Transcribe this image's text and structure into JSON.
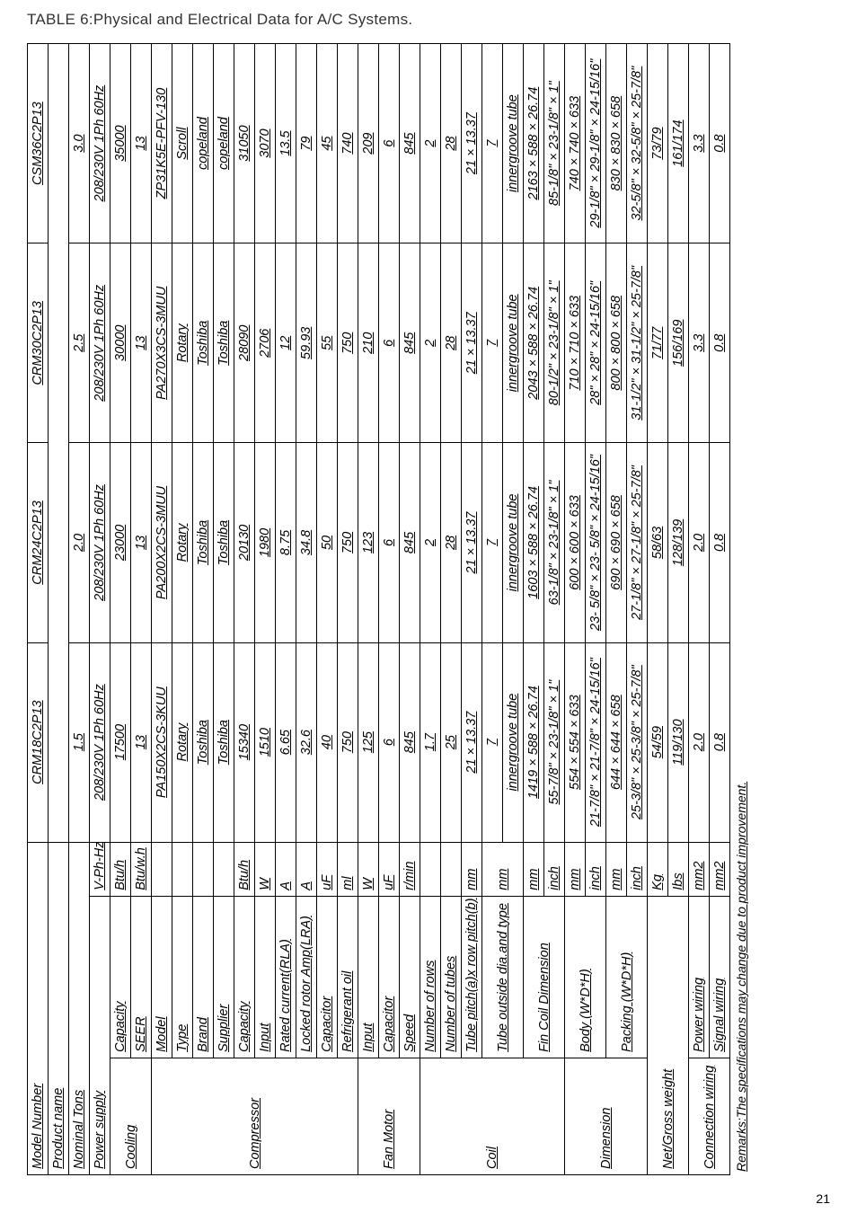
{
  "pageTitle": "TABLE 6:Physical and Electrical Data  for A/C Systems.",
  "pageNum": "21",
  "footnote": "Remarks:The specifications may change due to product improvement.",
  "headers": {
    "modelNumber": "Model Number",
    "productName": "Product name",
    "nominalTons": "Nominal Tons",
    "powerSupply": "Power supply",
    "powerSupplyUnit": "V-Ph-Hz"
  },
  "models": [
    "CRM18C2P13",
    "CRM24C2P13",
    "CRM30C2P13",
    "CSM36C2P13"
  ],
  "nominalTons": [
    "1.5",
    "2.0",
    "2.5",
    "3.0"
  ],
  "powerSupply": [
    "208/230V 1Ph 60Hz",
    "208/230V 1Ph 60Hz",
    "208/230V 1Ph 60Hz",
    "208/230V 1Ph 60Hz"
  ],
  "sections": {
    "cooling": {
      "label": "Cooling",
      "rows": [
        {
          "l": "Capacity",
          "u": "Btu/h",
          "v": [
            "17500",
            "23000",
            "30000",
            "35000"
          ]
        },
        {
          "l": "SEER",
          "u": "Btu/w.h",
          "v": [
            "13",
            "13",
            "13",
            "13"
          ]
        }
      ]
    },
    "compressor": {
      "label": "Compressor",
      "rows": [
        {
          "l": "Model",
          "u": "",
          "v": [
            "PA150X2CS-3KUU",
            "PA200X2CS-3MUU",
            "PA270X3CS-3MUU",
            "ZP31K5E-PFV-130"
          ]
        },
        {
          "l": "Type",
          "u": "",
          "v": [
            "Rotary",
            "Rotary",
            "Rotary",
            "Scroll"
          ]
        },
        {
          "l": "Brand",
          "u": "",
          "v": [
            "Toshiba",
            "Toshiba",
            "Toshiba",
            "copeland"
          ]
        },
        {
          "l": "Supplier",
          "u": "",
          "v": [
            "Toshiba",
            "Toshiba",
            "Toshiba",
            "copeland"
          ]
        },
        {
          "l": "Capacity",
          "u": "Btu/h",
          "v": [
            "15340",
            "20130",
            "28090",
            "31050"
          ]
        },
        {
          "l": "Input",
          "u": "W",
          "v": [
            "1510",
            "1980",
            "2706",
            "3070"
          ]
        },
        {
          "l": "Rated current(RLA)",
          "u": "A",
          "v": [
            "6.65",
            "8.75",
            "12",
            "13.5"
          ]
        },
        {
          "l": "Locked rotor Amp(LRA)",
          "u": "A",
          "v": [
            "32.6",
            "34.8",
            "59.93",
            "79"
          ]
        },
        {
          "l": "Capacitor",
          "u": "uF",
          "v": [
            "40",
            "50",
            "55",
            "45"
          ]
        },
        {
          "l": "Refrigerant oil",
          "u": "ml",
          "v": [
            "750",
            "750",
            "750",
            "740"
          ]
        }
      ]
    },
    "fanMotor": {
      "label": "Fan Motor",
      "rows": [
        {
          "l": "Input",
          "u": "W",
          "v": [
            "125",
            "123",
            "210",
            "209"
          ]
        },
        {
          "l": "Capacitor",
          "u": "uF",
          "v": [
            "6",
            "6",
            "6",
            "6"
          ]
        },
        {
          "l": "Speed",
          "u": "r/min",
          "v": [
            "845",
            "845",
            "845",
            "845"
          ]
        }
      ]
    },
    "coil": {
      "label": "Coil",
      "rows": [
        {
          "l": "Number of rows",
          "u": "",
          "v": [
            "1.7",
            "2",
            "2",
            "2"
          ]
        },
        {
          "l": "Number of tubes",
          "u": "",
          "v": [
            "25",
            "28",
            "28",
            "28"
          ]
        },
        {
          "l": "Tube pitch(a)x row pitch(b)",
          "u": "mm",
          "v": [
            "21 × 13.37",
            "21 × 13.37",
            "21 × 13.37",
            "21 × 13.37"
          ]
        },
        {
          "l": "Tube outside dia.and type",
          "u": "mm",
          "v": [
            "7",
            "7",
            "7",
            "7"
          ]
        },
        {
          "l": "",
          "u": "",
          "v": [
            "innergroove tube",
            "innergroove tube",
            "innergroove tube",
            "innergroove tube"
          ]
        },
        {
          "l": "Fin Coil Dimension",
          "u": "mm",
          "v": [
            "1419 × 588 × 26.74",
            "1603 × 588 × 26.74",
            "2043 × 588 × 26.74",
            "2163 × 588 × 26.74"
          ]
        },
        {
          "l": "",
          "u": "inch",
          "v": [
            "55-7/8\" × 23-1/8\" × 1\"",
            "63-1/8\" × 23-1/8\" × 1\"",
            "80-1/2\" × 23-1/8\" × 1\"",
            "85-1/8\" × 23-1/8\" × 1\""
          ]
        }
      ]
    },
    "dimension": {
      "label": "Dimension",
      "rows": [
        {
          "l": "Body (W*D*H)",
          "u": "mm",
          "v": [
            "554 × 554 × 633",
            "600 × 600 × 633",
            "710 × 710 × 633",
            "740 × 740 × 633"
          ]
        },
        {
          "l": "",
          "u": "inch",
          "v": [
            "21-7/8\" × 21-7/8\" × 24-15/16\"",
            "23- 5/8\" × 23- 5/8\" × 24-15/16\"",
            "28\" × 28\" × 24-15/16\"",
            "29-1/8\" × 29-1/8\" × 24-15/16\""
          ]
        },
        {
          "l": "Packing  (W*D*H)",
          "u": "mm",
          "v": [
            "644 × 644 × 658",
            "690 × 690 × 658",
            "800 × 800 × 658",
            "830 × 830 × 658"
          ]
        },
        {
          "l": "",
          "u": "inch",
          "v": [
            "25-3/8\" × 25-3/8\" × 25-7/8\"",
            "27-1/8\" × 27-1/8\" × 25-7/8\"",
            "31-1/2\" × 31-1/2\" × 25-7/8\"",
            "32-5/8\" × 32-5/8\" × 25-7/8\""
          ]
        }
      ]
    },
    "netGross": {
      "label": "Net/Gross weight",
      "rows": [
        {
          "l": "",
          "u": "Kg",
          "v": [
            "54/59",
            "58/63",
            "71/77",
            "73/79"
          ]
        },
        {
          "l": "",
          "u": "Ibs",
          "v": [
            "119/130",
            "128/139",
            "156/169",
            "161/174"
          ]
        }
      ]
    },
    "connWiring": {
      "label": "Connection wiring",
      "rows": [
        {
          "l": "Power wiring",
          "u": "mm2",
          "v": [
            "2.0",
            "2.0",
            "3.3",
            "3.3"
          ]
        },
        {
          "l": "Signal wiring",
          "u": "mm2",
          "v": [
            "0.8",
            "0.8",
            "0.8",
            "0.8"
          ]
        }
      ]
    }
  }
}
